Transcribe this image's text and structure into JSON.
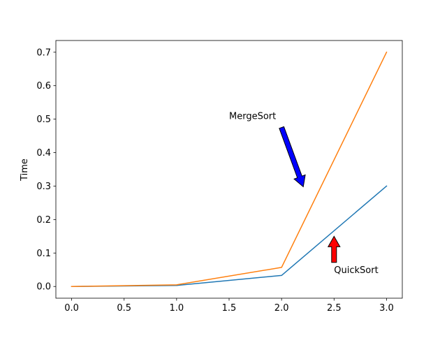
{
  "chart_data": {
    "type": "line",
    "title": "",
    "xlabel": "",
    "ylabel": "Time",
    "xlim": [
      -0.15,
      3.15
    ],
    "ylim": [
      -0.035,
      0.735
    ],
    "x": [
      0,
      1,
      2,
      3
    ],
    "x_ticks": [
      0.0,
      0.5,
      1.0,
      1.5,
      2.0,
      2.5,
      3.0
    ],
    "x_tick_labels": [
      "0.0",
      "0.5",
      "1.0",
      "1.5",
      "2.0",
      "2.5",
      "3.0"
    ],
    "y_ticks": [
      0.0,
      0.1,
      0.2,
      0.3,
      0.4,
      0.5,
      0.6,
      0.7
    ],
    "y_tick_labels": [
      "0.0",
      "0.1",
      "0.2",
      "0.3",
      "0.4",
      "0.5",
      "0.6",
      "0.7"
    ],
    "grid": false,
    "legend": "none",
    "series": [
      {
        "values": [
          0.0,
          0.003,
          0.033,
          0.3
        ],
        "color": "#1f77b4"
      },
      {
        "values": [
          0.0,
          0.005,
          0.057,
          0.7
        ],
        "color": "#ff7f0e"
      }
    ],
    "annotations": [
      {
        "text": "MergeSort",
        "text_xy": [
          1.5,
          0.5
        ],
        "arrow_to": [
          2.2,
          0.3
        ],
        "arrow_color": "#0000ff"
      },
      {
        "text": "QuickSort",
        "text_xy": [
          2.5,
          0.04
        ],
        "arrow_to": [
          2.5,
          0.15
        ],
        "arrow_color": "#ff0000"
      }
    ]
  }
}
